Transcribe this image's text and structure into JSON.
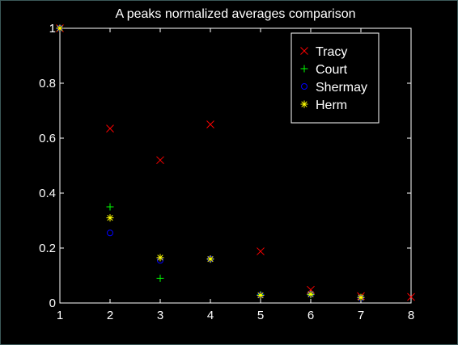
{
  "chart_data": {
    "type": "scatter",
    "title": "A peaks normalized averages comparison",
    "xlabel": "",
    "ylabel": "",
    "xlim": [
      1,
      8
    ],
    "ylim": [
      0,
      1
    ],
    "xticks": [
      "1",
      "2",
      "3",
      "4",
      "5",
      "6",
      "7",
      "8"
    ],
    "yticks": [
      "0",
      "0.2",
      "0.4",
      "0.6",
      "0.8",
      "1"
    ],
    "grid": false,
    "legend_position": "top-right",
    "background": "#000000",
    "axes_color": "#ffffff",
    "series": [
      {
        "name": "Tracy",
        "marker": "x",
        "color": "#ff0000",
        "points": [
          [
            1,
            1.0
          ],
          [
            2,
            0.635
          ],
          [
            3,
            0.52
          ],
          [
            4,
            0.65
          ],
          [
            5,
            0.188
          ],
          [
            6,
            0.048
          ],
          [
            7,
            0.025
          ],
          [
            8,
            0.022
          ]
        ]
      },
      {
        "name": "Court",
        "marker": "+",
        "color": "#00ff00",
        "points": [
          [
            1,
            1.0
          ],
          [
            2,
            0.35
          ],
          [
            3,
            0.09
          ],
          [
            4,
            0.16
          ],
          [
            5,
            0.03
          ],
          [
            6,
            0.03
          ],
          [
            7,
            0.02
          ]
        ]
      },
      {
        "name": "Shermay",
        "marker": "o",
        "color": "#0000ff",
        "points": [
          [
            1,
            1.0
          ],
          [
            2,
            0.255
          ],
          [
            3,
            0.155
          ],
          [
            4,
            0.16
          ],
          [
            5,
            0.028
          ],
          [
            6,
            0.032
          ],
          [
            7,
            0.018
          ]
        ]
      },
      {
        "name": "Herm",
        "marker": "*",
        "color": "#ffff00",
        "points": [
          [
            1,
            1.0
          ],
          [
            2,
            0.31
          ],
          [
            3,
            0.165
          ],
          [
            4,
            0.16
          ],
          [
            5,
            0.028
          ],
          [
            6,
            0.032
          ],
          [
            7,
            0.02
          ]
        ]
      }
    ]
  }
}
